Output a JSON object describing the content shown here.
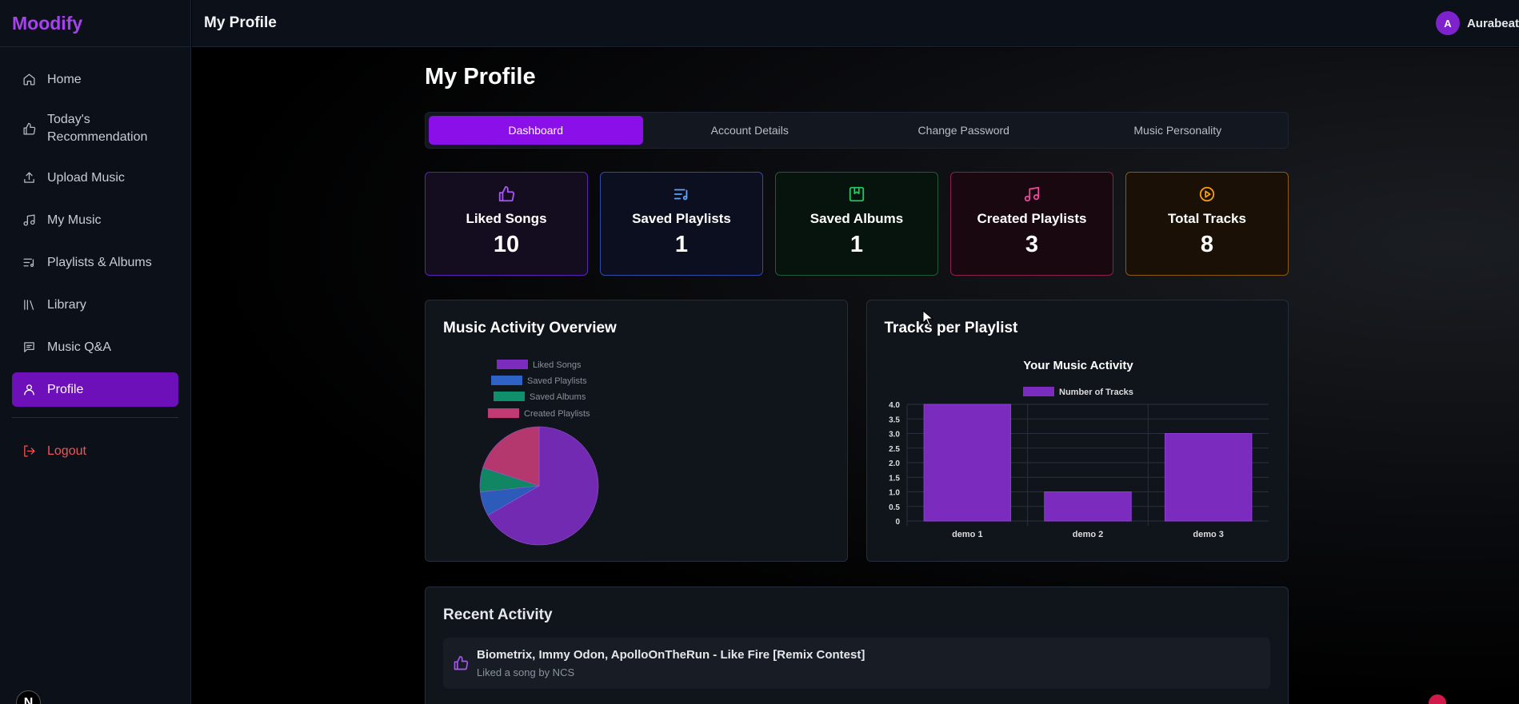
{
  "app": {
    "name": "Moodify"
  },
  "topbar": {
    "title": "My Profile",
    "user_initial": "A",
    "user_name": "Aurabeat"
  },
  "sidebar": {
    "items": [
      {
        "label": "Home",
        "icon": "home-icon"
      },
      {
        "label": "Today's Recommendation",
        "icon": "thumbs-up-icon"
      },
      {
        "label": "Upload Music",
        "icon": "upload-icon"
      },
      {
        "label": "My Music",
        "icon": "music-note-icon"
      },
      {
        "label": "Playlists & Albums",
        "icon": "playlist-icon"
      },
      {
        "label": "Library",
        "icon": "library-icon"
      },
      {
        "label": "Music Q&A",
        "icon": "chat-icon"
      },
      {
        "label": "Profile",
        "icon": "user-icon",
        "active": true
      }
    ],
    "logout": "Logout",
    "badge": "N"
  },
  "page": {
    "title": "My Profile",
    "tabs": [
      "Dashboard",
      "Account Details",
      "Change Password",
      "Music Personality"
    ],
    "active_tab": "Dashboard"
  },
  "stats": [
    {
      "label": "Liked Songs",
      "value": "10",
      "icon": "thumbs-up-icon",
      "color": "#a855f7"
    },
    {
      "label": "Saved Playlists",
      "value": "1",
      "icon": "playlist-icon",
      "color": "#60a5fa"
    },
    {
      "label": "Saved Albums",
      "value": "1",
      "icon": "bookmark-icon",
      "color": "#22c55e"
    },
    {
      "label": "Created Playlists",
      "value": "3",
      "icon": "music-note-icon",
      "color": "#ec4899"
    },
    {
      "label": "Total Tracks",
      "value": "8",
      "icon": "play-circle-icon",
      "color": "#f59e0b"
    }
  ],
  "panels": {
    "activity_title": "Music Activity Overview",
    "tracks_title": "Tracks per Playlist"
  },
  "chart_data": [
    {
      "type": "pie",
      "categories": [
        "Liked Songs",
        "Saved Playlists",
        "Saved Albums",
        "Created Playlists"
      ],
      "values": [
        10,
        1,
        1,
        3
      ],
      "colors": [
        "#7b2cbf",
        "#2f62c7",
        "#10906a",
        "#c23a74"
      ],
      "legend": "top"
    },
    {
      "type": "bar",
      "title": "Your Music Activity",
      "categories": [
        "demo 1",
        "demo 2",
        "demo 3"
      ],
      "series": [
        {
          "name": "Number of Tracks",
          "values": [
            4,
            1,
            3
          ]
        }
      ],
      "ylim": [
        0,
        4
      ],
      "yticks": [
        "0",
        "0.5",
        "1.0",
        "1.5",
        "2.0",
        "2.5",
        "3.0",
        "3.5",
        "4.0"
      ],
      "color": "#7b2cbf",
      "legend": "top",
      "grid": true
    }
  ],
  "recent": {
    "title": "Recent Activity",
    "items": [
      {
        "title": "Biometrix, Immy Odon, ApolloOnTheRun - Like Fire [Remix Contest]",
        "subtitle": "Liked a song by NCS",
        "icon": "thumbs-up-icon"
      }
    ]
  }
}
